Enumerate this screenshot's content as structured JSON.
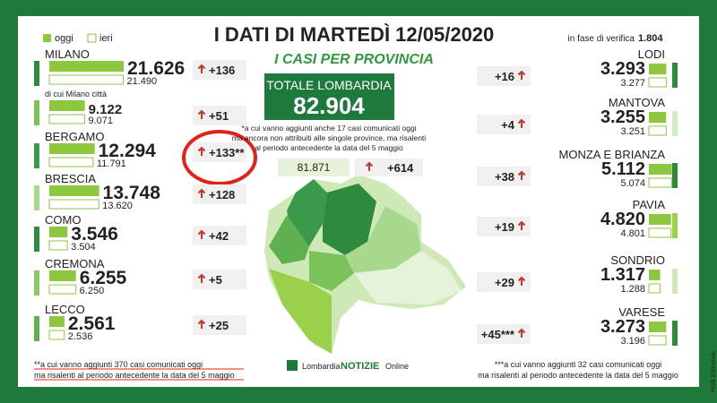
{
  "header": {
    "title": "I DATI DI MARTEDÌ 12/05/2020",
    "subtitle": "I CASI PER PROVINCIA",
    "legend": [
      "oggi",
      "ieri"
    ],
    "verifica_label": "in fase di verifica",
    "verifica_value": "1.804"
  },
  "total": {
    "label": "TOTALE LOMBARDIA",
    "value": "82.904",
    "note": [
      "*a cui vanno aggiunti anche 17 casi comunicati oggi",
      "ma ancora non attribuiti alle singole province, ma risalenti",
      "al periodo antecedente la data del 5 maggio"
    ],
    "ieri": "81.871",
    "delta": "+614"
  },
  "left": [
    {
      "name": "MILANO",
      "oggi": "21.626",
      "ieri": "21.490",
      "delta": "+136",
      "color": "#2e8b3e"
    },
    {
      "name": "di cui Milano città",
      "oggi": "9.122",
      "ieri": "9.071",
      "delta": "+51",
      "color": "#7cc25a"
    },
    {
      "name": "BERGAMO",
      "oggi": "12.294",
      "ieri": "11.791",
      "delta": "+133**",
      "color": "#3a9a4a"
    },
    {
      "name": "BRESCIA",
      "oggi": "13.748",
      "ieri": "13.620",
      "delta": "+128",
      "color": "#a8d88e"
    },
    {
      "name": "COMO",
      "oggi": "3.546",
      "ieri": "3.504",
      "delta": "+42",
      "color": "#2e8b3e"
    },
    {
      "name": "CREMONA",
      "oggi": "6.255",
      "ieri": "6.250",
      "delta": "+5",
      "color": "#8cc866"
    },
    {
      "name": "LECCO",
      "oggi": "2.561",
      "ieri": "2.536",
      "delta": "+25",
      "color": "#5fb04e"
    }
  ],
  "right": [
    {
      "name": "LODI",
      "oggi": "3.293",
      "ieri": "3.277",
      "delta": "+16",
      "color": "#2e8b3e"
    },
    {
      "name": "MANTOVA",
      "oggi": "3.255",
      "ieri": "3.251",
      "delta": "+4",
      "color": "#d4ecc4"
    },
    {
      "name": "MONZA E BRIANZA",
      "oggi": "5.112",
      "ieri": "5.074",
      "delta": "+38",
      "color": "#2e8b3e"
    },
    {
      "name": "PAVIA",
      "oggi": "4.820",
      "ieri": "4.801",
      "delta": "+19",
      "color": "#9bd14a"
    },
    {
      "name": "SONDRIO",
      "oggi": "1.317",
      "ieri": "1.288",
      "delta": "+29",
      "color": "#cfe8b8"
    },
    {
      "name": "VARESE",
      "oggi": "3.273",
      "ieri": "3.196",
      "delta": "+45***",
      "color": "#2e8b3e"
    }
  ],
  "footnotes": {
    "left": [
      "**a cui vanno aggiunti 370 casi comunicati oggi",
      "ma risalenti al periodo antecedente la data del 5 maggio"
    ],
    "right": [
      "***a cui vanno aggiunti 32 casi comunicati oggi",
      "ma risalenti al periodo antecedente la data del 5 maggio"
    ]
  },
  "logo": [
    "Lombardia",
    "NOTIZIE",
    "Online"
  ],
  "side_label": "HUB Editoriale"
}
